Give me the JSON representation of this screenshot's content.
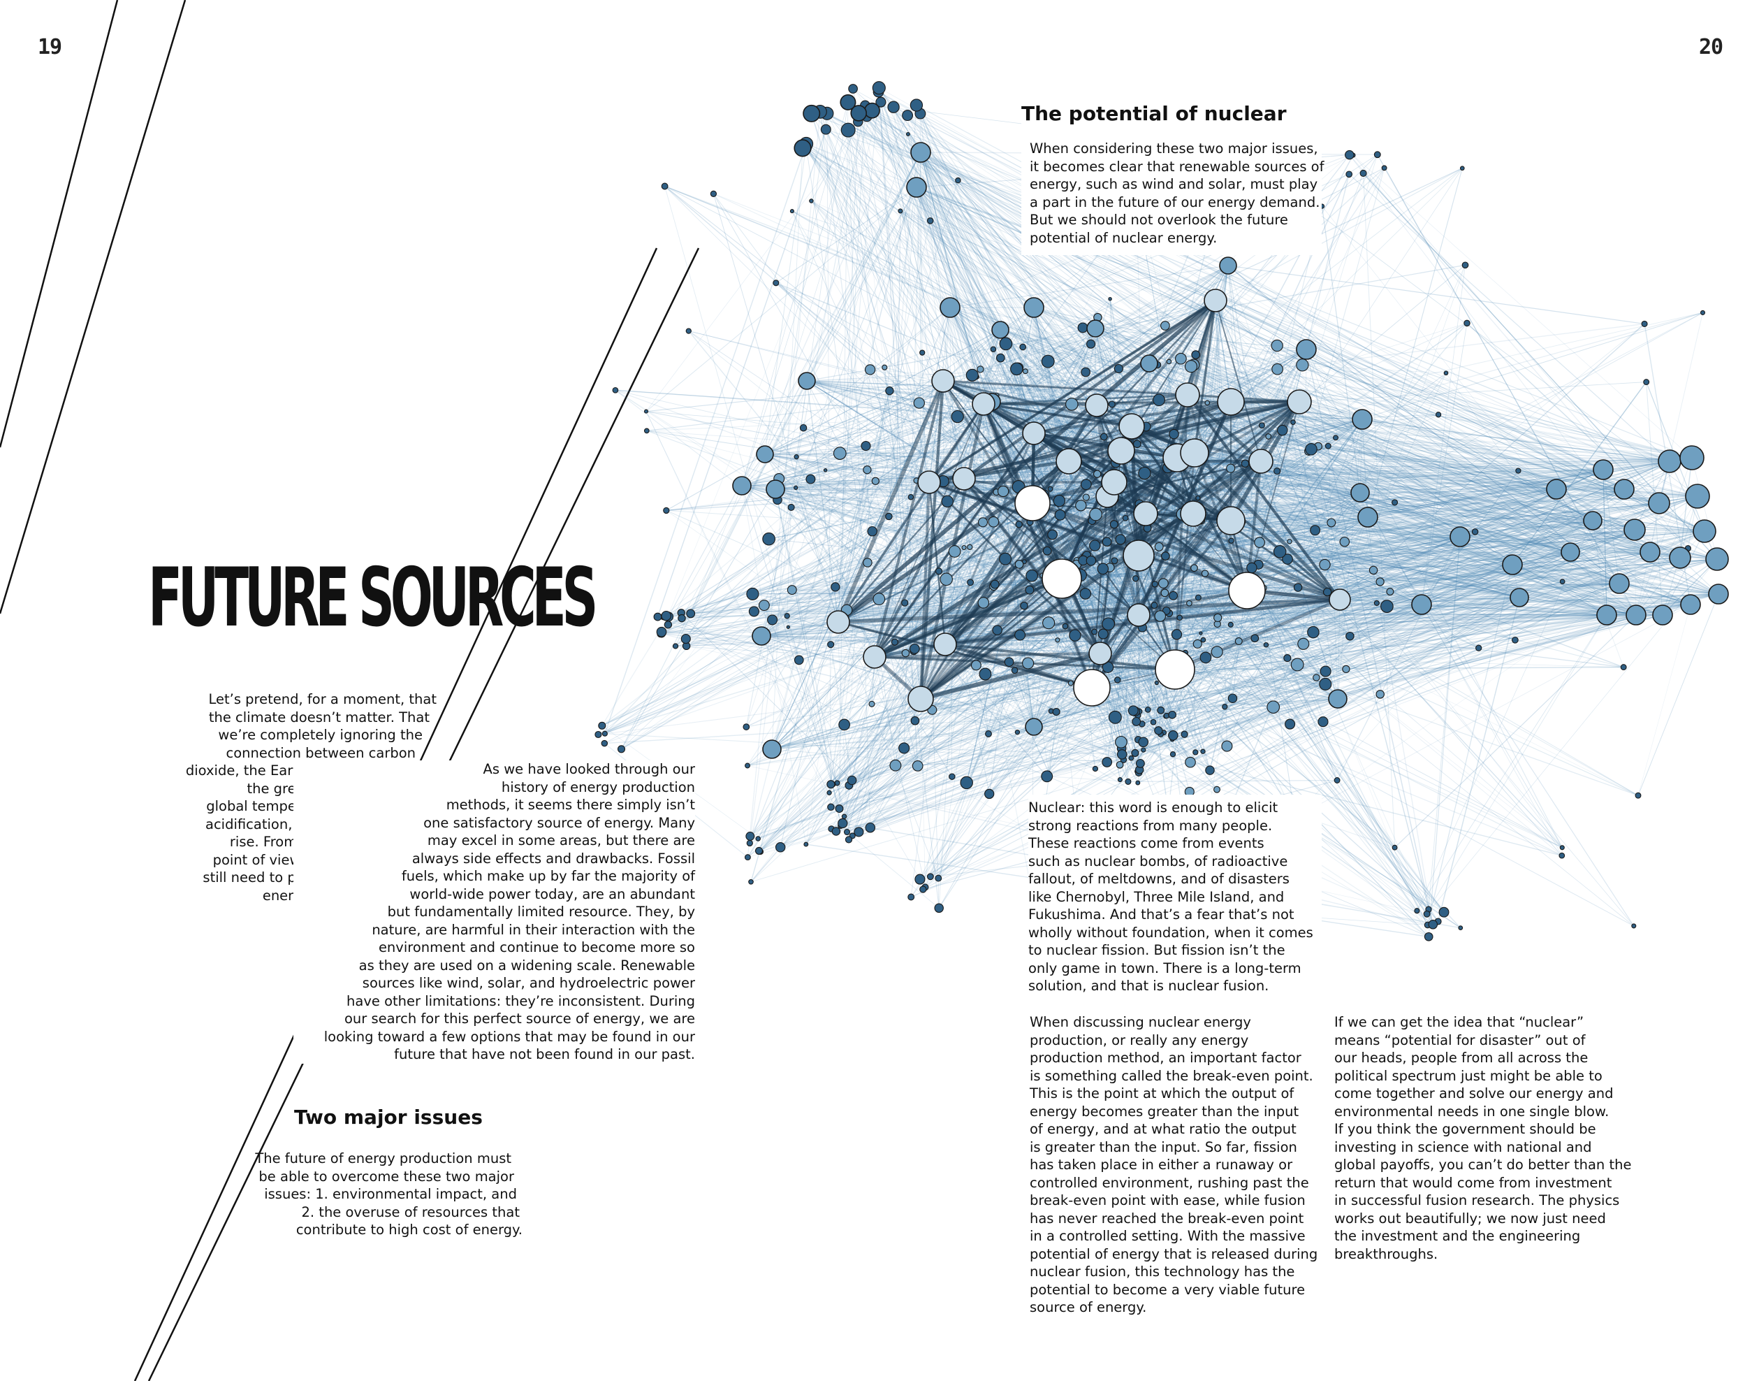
{
  "page_numbers": {
    "left": "19",
    "right": "20"
  },
  "title": "FUTURE SOURCES",
  "intro_lines": [
    "Let’s pretend, for a moment, that",
    "the climate doesn’t matter. That",
    "we’re completely ignoring the",
    "connection between carbon",
    "dioxide, the Earth’s atmosphere,",
    "the greenhouse effect,",
    "global temperatures, ocean",
    "acidification, and sea-level",
    "rise. From a long-term",
    "point of view, we would",
    "still need to plan for our",
    "energy future."
  ],
  "history_lines": [
    "As we have looked through our",
    "history of energy production",
    "methods, it seems there simply isn’t",
    "one satisfactory source of energy. Many",
    "may excel in some areas, but there are",
    "always side effects and drawbacks. Fossil",
    "fuels, which make up by far the majority of",
    "world-wide power today, are an abundant",
    "but fundamentally limited resource. They, by",
    "nature, are harmful in their interaction with the",
    "environment and continue to become more so",
    "as they are used on a widening scale. Renewable",
    "sources like wind, solar, and hydroelectric power",
    "have other limitations: they’re inconsistent. During",
    "our search for this perfect source of energy, we are",
    "looking toward a few options that may be found in our",
    "future that have not been found in our past."
  ],
  "two_issues": {
    "heading": "Two major issues",
    "lines": [
      "The future of energy production must",
      "be able to overcome these two major",
      "issues: 1. environmental impact, and",
      "2. the overuse of resources that",
      "contribute to high cost of energy."
    ]
  },
  "nuclear_potential": {
    "heading": "The potential of nuclear",
    "lines": [
      "When considering these two major issues,",
      "it becomes clear that renewable sources of",
      "energy, such as wind and solar, must play",
      "a part in the future of our energy demand.",
      "But we should not overlook the future",
      "potential of nuclear energy."
    ]
  },
  "nuclear_word_lines": [
    "Nuclear: this word is enough to elicit",
    "strong reactions from many people.",
    "These reactions come from events",
    "such as nuclear bombs, of radioactive",
    "fallout, of meltdowns, and of disasters",
    "like Chernobyl, Three Mile Island, and",
    "Fukushima. And that’s a fear that’s not",
    "wholly without foundation, when it comes",
    "to nuclear fission. But fission isn’t the",
    "only game in town. There is a long-term",
    "solution, and that is nuclear fusion."
  ],
  "break_even_lines": [
    "When discussing nuclear energy",
    "production, or really any energy",
    "production method, an important factor",
    "is something called the break-even point.",
    "This is the point at which the output of",
    "energy becomes greater than the input",
    "of energy, and at what ratio the output",
    "is greater than the input. So far, fission",
    "has taken place in either a runaway or",
    "controlled environment, rushing past the",
    "break-even point with ease, while fusion",
    "has never reached the break-even point",
    "in a controlled setting. With the massive",
    "potential of energy that is released during",
    "nuclear fusion, this technology has the",
    "potential to become a very viable future",
    "source of energy."
  ],
  "investment_lines": [
    "If we can get the idea that “nuclear”",
    "means “potential for disaster” out of",
    "our heads, people from all across the",
    "political spectrum just might be able to",
    "come together and solve our energy and",
    "environmental needs in one single blow.",
    "If you think the government should be",
    "investing in science with national and",
    "global payoffs, you can’t do better than the",
    "return that would come from investment",
    "in successful fusion research. The physics",
    "works out beautifully; we now just need",
    "the investment and the engineering",
    "breakthroughs."
  ],
  "colors": {
    "edge": "#4a86b3",
    "node_dark": "#2f5f84",
    "node_mid": "#6f9fc0",
    "node_light": "#c6dae8",
    "node_hub": "#ffffff",
    "outline": "#1a1a1a"
  }
}
